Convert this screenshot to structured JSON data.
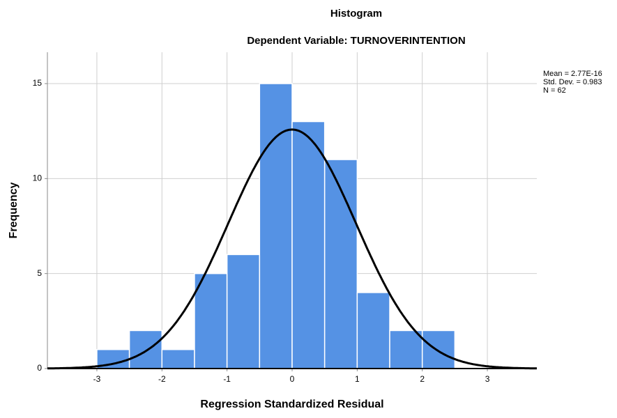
{
  "chart_data": {
    "type": "histogram",
    "title": "Histogram",
    "subtitle": "Dependent Variable: TURNOVERINTENTION",
    "x_label": "Regression Standardized Residual",
    "y_label": "Frequency",
    "bins": [
      -3,
      -2.5,
      -2,
      -1.5,
      -1,
      -0.5,
      0,
      0.5,
      1,
      1.5,
      2,
      2.5
    ],
    "values": [
      1,
      2,
      1,
      5,
      6,
      15,
      13,
      11,
      4,
      2,
      2
    ],
    "color": "#5592e4",
    "xlim": [
      -3.76,
      3.76
    ],
    "ylim": [
      0,
      16.65
    ],
    "xticks": [
      -3,
      -2,
      -1,
      0,
      1,
      2,
      3
    ],
    "yticks": [
      0,
      5,
      10,
      15
    ],
    "grid": true,
    "annotations": [
      "Mean = 2.77E-16",
      "Std. Dev. = 0.983",
      "N = 62"
    ],
    "normal_curve": {
      "mean": 2.77e-16,
      "std": 0.983,
      "n": 62,
      "color": "#000000"
    }
  }
}
